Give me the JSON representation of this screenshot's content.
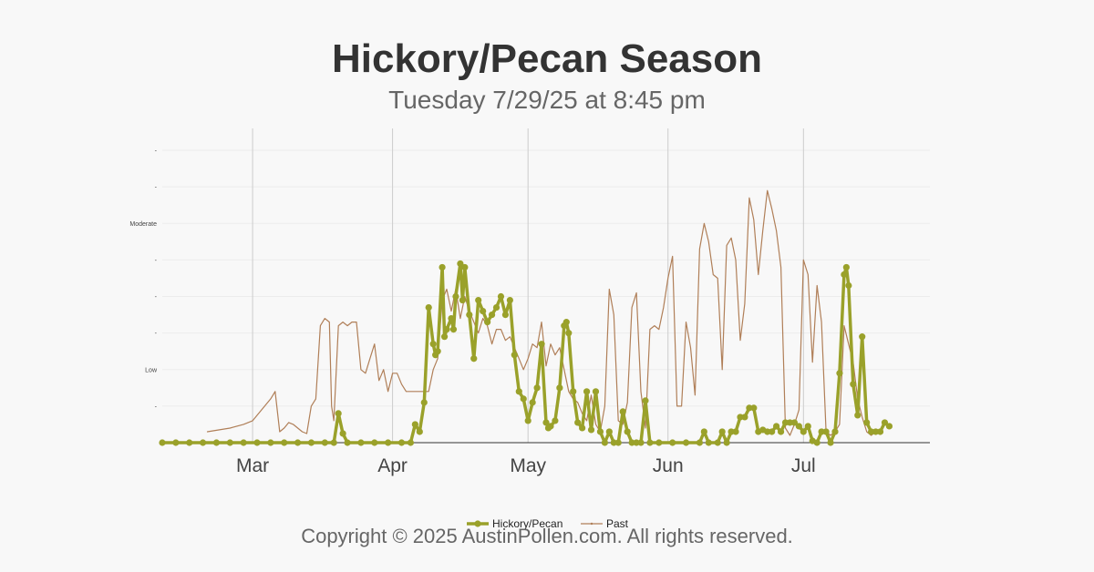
{
  "header": {
    "title": "Hickory/Pecan Season",
    "subtitle": "Tuesday 7/29/25 at 8:45 pm"
  },
  "footer": {
    "copyright": "Copyright © 2025 AustinPollen.com.  All rights reserved."
  },
  "colors": {
    "primary_series": "#9aa12a",
    "past_series": "#b07f58",
    "gridline": "#cccccc",
    "background": "#f8f8f8"
  },
  "chart_data": {
    "type": "line",
    "title": "Hickory/Pecan Season",
    "subtitle": "Tuesday 7/29/25 at 8:45 pm",
    "xlabel": "",
    "ylabel": "",
    "x_unit": "day of year (2025)",
    "xlim": [
      40,
      210
    ],
    "ylim": [
      0,
      8.5
    ],
    "grid": true,
    "legend": "bottom-center",
    "x_ticks": [
      {
        "label": "Mar",
        "value": 60
      },
      {
        "label": "Apr",
        "value": 91
      },
      {
        "label": "May",
        "value": 121
      },
      {
        "label": "Jun",
        "value": 152
      },
      {
        "label": "Jul",
        "value": 182
      }
    ],
    "y_ticks": [
      {
        "label": "-",
        "value": 1
      },
      {
        "label": "Low",
        "value": 2
      },
      {
        "label": "-",
        "value": 3
      },
      {
        "label": "-",
        "value": 4
      },
      {
        "label": "-",
        "value": 5
      },
      {
        "label": "Moderate",
        "value": 6
      },
      {
        "label": "-",
        "value": 7
      },
      {
        "label": "-",
        "value": 8
      }
    ],
    "series": [
      {
        "name": "Hickory/Pecan",
        "color": "#9aa12a",
        "marker": "circle",
        "points": [
          [
            40,
            0
          ],
          [
            43,
            0
          ],
          [
            46,
            0
          ],
          [
            49,
            0
          ],
          [
            52,
            0
          ],
          [
            55,
            0
          ],
          [
            58,
            0
          ],
          [
            61,
            0
          ],
          [
            64,
            0
          ],
          [
            67,
            0
          ],
          [
            70,
            0
          ],
          [
            73,
            0
          ],
          [
            76,
            0
          ],
          [
            78,
            0
          ],
          [
            79,
            0.8
          ],
          [
            80,
            0.25
          ],
          [
            81,
            0
          ],
          [
            84,
            0
          ],
          [
            87,
            0
          ],
          [
            90,
            0
          ],
          [
            93,
            0
          ],
          [
            95,
            0
          ],
          [
            96,
            0.5
          ],
          [
            97,
            0.3
          ],
          [
            98,
            1.1
          ],
          [
            99,
            3.7
          ],
          [
            100,
            2.7
          ],
          [
            100.5,
            2.4
          ],
          [
            101,
            2.5
          ],
          [
            102,
            4.8
          ],
          [
            102.5,
            2.9
          ],
          [
            103,
            3.1
          ],
          [
            104,
            3.4
          ],
          [
            104.5,
            3.1
          ],
          [
            105,
            4.0
          ],
          [
            106,
            4.9
          ],
          [
            106.5,
            3.9
          ],
          [
            107,
            4.8
          ],
          [
            108,
            3.5
          ],
          [
            109,
            2.3
          ],
          [
            110,
            3.9
          ],
          [
            111,
            3.6
          ],
          [
            112,
            3.3
          ],
          [
            113,
            3.5
          ],
          [
            114,
            3.7
          ],
          [
            115,
            4.0
          ],
          [
            116,
            3.5
          ],
          [
            117,
            3.9
          ],
          [
            118,
            2.4
          ],
          [
            119,
            1.4
          ],
          [
            120,
            1.2
          ],
          [
            121,
            0.6
          ],
          [
            122,
            1.1
          ],
          [
            123,
            1.5
          ],
          [
            124,
            2.7
          ],
          [
            125,
            0.55
          ],
          [
            125.5,
            0.4
          ],
          [
            126,
            0.45
          ],
          [
            127,
            0.6
          ],
          [
            128,
            1.5
          ],
          [
            129,
            3.2
          ],
          [
            129.5,
            3.3
          ],
          [
            130,
            3.0
          ],
          [
            131,
            1.4
          ],
          [
            132,
            0.55
          ],
          [
            133,
            0.4
          ],
          [
            134,
            1.4
          ],
          [
            135,
            0.35
          ],
          [
            136,
            1.4
          ],
          [
            137,
            0.3
          ],
          [
            138,
            0
          ],
          [
            139,
            0.3
          ],
          [
            140,
            0
          ],
          [
            141,
            0
          ],
          [
            142,
            0.85
          ],
          [
            143,
            0.3
          ],
          [
            144,
            0
          ],
          [
            145,
            0
          ],
          [
            146,
            0
          ],
          [
            147,
            1.15
          ],
          [
            148,
            0
          ],
          [
            150,
            0
          ],
          [
            153,
            0
          ],
          [
            156,
            0
          ],
          [
            159,
            0
          ],
          [
            160,
            0.3
          ],
          [
            161,
            0
          ],
          [
            163,
            0
          ],
          [
            164,
            0.3
          ],
          [
            165,
            0
          ],
          [
            166,
            0.3
          ],
          [
            167,
            0.3
          ],
          [
            168,
            0.7
          ],
          [
            169,
            0.7
          ],
          [
            170,
            0.95
          ],
          [
            171,
            0.95
          ],
          [
            172,
            0.3
          ],
          [
            173,
            0.35
          ],
          [
            174,
            0.3
          ],
          [
            175,
            0.3
          ],
          [
            176,
            0.45
          ],
          [
            177,
            0.3
          ],
          [
            178,
            0.55
          ],
          [
            179,
            0.55
          ],
          [
            180,
            0.55
          ],
          [
            181,
            0.45
          ],
          [
            182,
            0.3
          ],
          [
            183,
            0.45
          ],
          [
            184,
            0.05
          ],
          [
            185,
            0
          ],
          [
            186,
            0.3
          ],
          [
            187,
            0.3
          ],
          [
            188,
            0
          ],
          [
            189,
            0.3
          ],
          [
            190,
            1.9
          ],
          [
            191,
            4.6
          ],
          [
            191.5,
            4.8
          ],
          [
            192,
            4.3
          ],
          [
            193,
            1.6
          ],
          [
            194,
            0.75
          ],
          [
            195,
            2.9
          ],
          [
            196,
            0.55
          ],
          [
            197,
            0.3
          ],
          [
            198,
            0.3
          ],
          [
            199,
            0.3
          ],
          [
            200,
            0.55
          ],
          [
            201,
            0.45
          ]
        ]
      },
      {
        "name": "Past",
        "color": "#b07f58",
        "marker": "none",
        "points": [
          [
            50,
            0.3
          ],
          [
            55,
            0.4
          ],
          [
            58,
            0.5
          ],
          [
            60,
            0.6
          ],
          [
            62,
            0.9
          ],
          [
            64,
            1.2
          ],
          [
            65,
            1.4
          ],
          [
            66,
            0.3
          ],
          [
            67,
            0.4
          ],
          [
            68,
            0.55
          ],
          [
            69,
            0.5
          ],
          [
            71,
            0.3
          ],
          [
            72,
            0.25
          ],
          [
            73,
            1.0
          ],
          [
            74,
            1.2
          ],
          [
            75,
            3.2
          ],
          [
            76,
            3.4
          ],
          [
            77,
            3.3
          ],
          [
            77.5,
            1.0
          ],
          [
            78,
            0.6
          ],
          [
            79,
            3.2
          ],
          [
            80,
            3.3
          ],
          [
            81,
            3.2
          ],
          [
            82,
            3.3
          ],
          [
            83,
            3.3
          ],
          [
            84,
            2.0
          ],
          [
            85,
            1.9
          ],
          [
            86,
            2.3
          ],
          [
            87,
            2.7
          ],
          [
            88,
            1.7
          ],
          [
            89,
            2.0
          ],
          [
            90,
            1.4
          ],
          [
            91,
            1.9
          ],
          [
            92,
            1.9
          ],
          [
            93,
            1.6
          ],
          [
            94,
            1.4
          ],
          [
            95,
            1.4
          ],
          [
            96,
            1.4
          ],
          [
            97,
            1.4
          ],
          [
            98,
            1.4
          ],
          [
            99,
            1.4
          ],
          [
            100,
            2.0
          ],
          [
            101,
            2.3
          ],
          [
            102,
            3.9
          ],
          [
            103,
            4.2
          ],
          [
            104,
            3.6
          ],
          [
            105,
            4.2
          ],
          [
            106,
            3.4
          ],
          [
            107,
            4.0
          ],
          [
            108,
            3.6
          ],
          [
            109,
            3.3
          ],
          [
            110,
            3.0
          ],
          [
            111,
            3.4
          ],
          [
            112,
            3.2
          ],
          [
            113,
            2.7
          ],
          [
            114,
            3.1
          ],
          [
            115,
            3.1
          ],
          [
            116,
            2.8
          ],
          [
            117,
            2.9
          ],
          [
            118,
            2.6
          ],
          [
            119,
            2.3
          ],
          [
            120,
            2.0
          ],
          [
            121,
            2.3
          ],
          [
            122,
            2.7
          ],
          [
            123,
            2.6
          ],
          [
            124,
            3.3
          ],
          [
            125,
            2.1
          ],
          [
            126,
            2.7
          ],
          [
            127,
            2.4
          ],
          [
            128,
            2.6
          ],
          [
            129,
            2.0
          ],
          [
            130,
            1.4
          ],
          [
            131,
            1.2
          ],
          [
            132,
            1.1
          ],
          [
            133,
            0.8
          ],
          [
            134,
            0.6
          ],
          [
            135,
            1.3
          ],
          [
            136,
            0.5
          ],
          [
            137,
            0.3
          ],
          [
            138,
            1.0
          ],
          [
            139,
            4.2
          ],
          [
            140,
            3.5
          ],
          [
            141,
            0.6
          ],
          [
            142,
            0.5
          ],
          [
            143,
            1.1
          ],
          [
            144,
            3.7
          ],
          [
            145,
            4.1
          ],
          [
            146,
            1.4
          ],
          [
            147,
            0.4
          ],
          [
            148,
            3.1
          ],
          [
            149,
            3.2
          ],
          [
            150,
            3.1
          ],
          [
            151,
            3.7
          ],
          [
            152,
            4.5
          ],
          [
            153,
            5.1
          ],
          [
            154,
            1.0
          ],
          [
            155,
            1.0
          ],
          [
            156,
            3.3
          ],
          [
            157,
            2.6
          ],
          [
            158,
            1.3
          ],
          [
            159,
            5.3
          ],
          [
            160,
            6.0
          ],
          [
            161,
            5.5
          ],
          [
            162,
            4.6
          ],
          [
            163,
            4.5
          ],
          [
            164,
            2.0
          ],
          [
            165,
            5.4
          ],
          [
            166,
            5.6
          ],
          [
            167,
            5.0
          ],
          [
            168,
            2.8
          ],
          [
            169,
            3.8
          ],
          [
            170,
            6.7
          ],
          [
            171,
            6.1
          ],
          [
            172,
            4.6
          ],
          [
            173,
            5.8
          ],
          [
            174,
            6.9
          ],
          [
            175,
            6.4
          ],
          [
            176,
            5.8
          ],
          [
            177,
            4.8
          ],
          [
            178,
            0.4
          ],
          [
            179,
            0.2
          ],
          [
            180,
            0.5
          ],
          [
            181,
            0.9
          ],
          [
            182,
            5.0
          ],
          [
            183,
            4.6
          ],
          [
            184,
            2.2
          ],
          [
            185,
            4.3
          ],
          [
            186,
            3.3
          ],
          [
            187,
            0.3
          ],
          [
            188,
            0.2
          ],
          [
            189,
            0.3
          ],
          [
            190,
            0.5
          ],
          [
            191,
            3.2
          ],
          [
            192,
            2.7
          ],
          [
            193,
            2.2
          ],
          [
            194,
            1.2
          ],
          [
            195,
            0.7
          ],
          [
            196,
            0.3
          ],
          [
            197,
            0.2
          ],
          [
            198,
            0.3
          ]
        ]
      }
    ]
  }
}
